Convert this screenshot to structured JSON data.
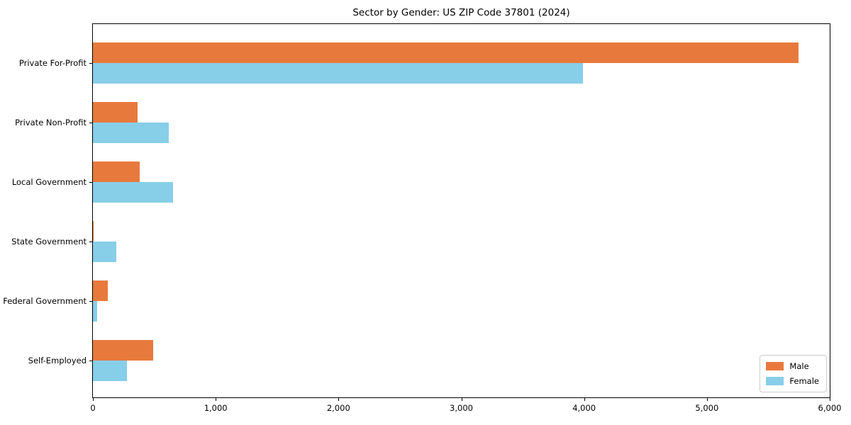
{
  "title": "Sector by Gender: US ZIP Code 37801 (2024)",
  "colors": {
    "male": "#e8793d",
    "female": "#87cee8",
    "axis": "#000000",
    "legend_border": "#cccccc",
    "background": "#ffffff"
  },
  "chart_data": {
    "type": "bar",
    "orientation": "horizontal",
    "title": "Sector by Gender: US ZIP Code 37801 (2024)",
    "categories": [
      "Private For-Profit",
      "Private Non-Profit",
      "Local Government",
      "State Government",
      "Federal Government",
      "Self-Employed"
    ],
    "series": [
      {
        "name": "Male",
        "color": "#e8793d",
        "values": [
          5745,
          362,
          380,
          6,
          120,
          490
        ]
      },
      {
        "name": "Female",
        "color": "#87cee8",
        "values": [
          3990,
          617,
          651,
          190,
          35,
          277
        ]
      }
    ],
    "xlabel": "",
    "ylabel": "",
    "xlim": [
      0,
      6000
    ],
    "xticks": [
      0,
      1000,
      2000,
      3000,
      4000,
      5000,
      6000
    ],
    "xtick_labels": [
      "0",
      "1,000",
      "2,000",
      "3,000",
      "4,000",
      "5,000",
      "6,000"
    ],
    "grid": false,
    "legend": {
      "position": "lower right",
      "entries": [
        "Male",
        "Female"
      ]
    }
  }
}
